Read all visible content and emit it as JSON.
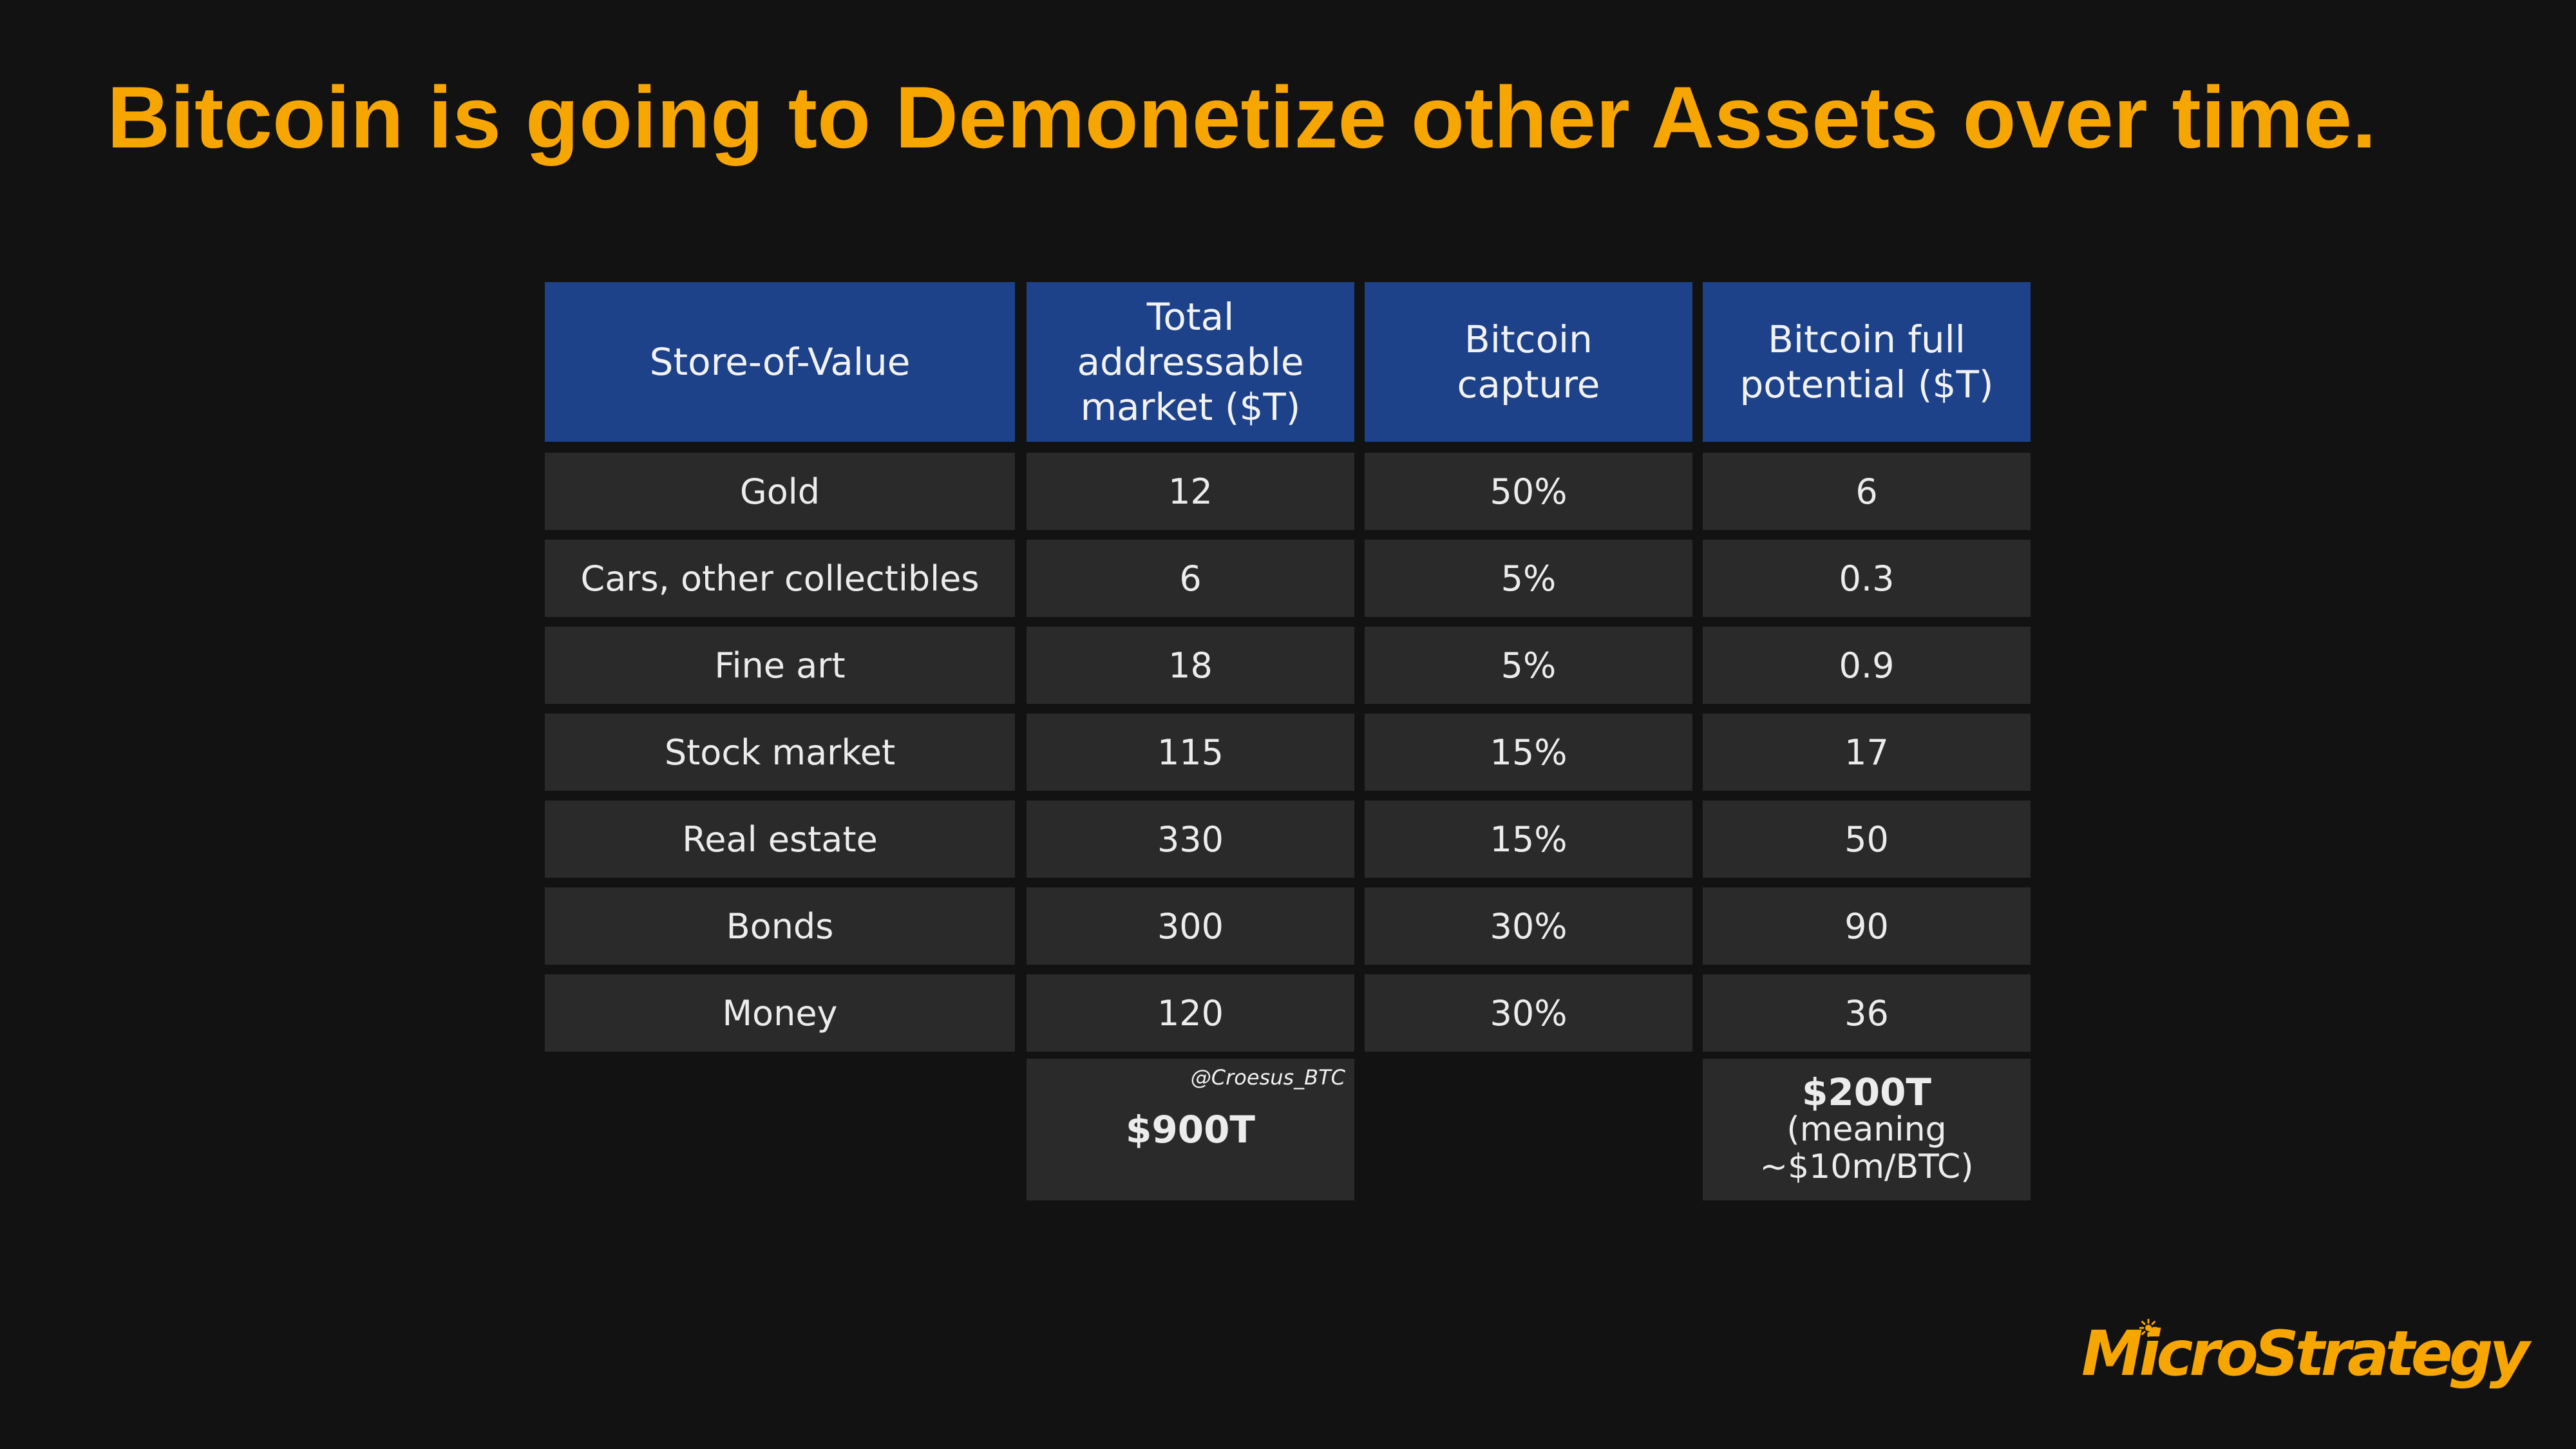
{
  "title": "Bitcoin is going to Demonetize other Assets over time.",
  "colors": {
    "title": "#f7a600",
    "header_bg": "#1d4289",
    "cell_bg": "#2a2a2a",
    "background": "#121212"
  },
  "table": {
    "headers": [
      [
        "Store-of-Value"
      ],
      [
        "Total",
        "addressable",
        "market ($T)"
      ],
      [
        "Bitcoin",
        "capture"
      ],
      [
        "Bitcoin full",
        "potential ($T)"
      ]
    ],
    "rows": [
      {
        "asset": "Gold",
        "tam": "12",
        "capture": "50%",
        "potential": "6"
      },
      {
        "asset": "Cars, other collectibles",
        "tam": "6",
        "capture": "5%",
        "potential": "0.3"
      },
      {
        "asset": "Fine art",
        "tam": "18",
        "capture": "5%",
        "potential": "0.9"
      },
      {
        "asset": "Stock market",
        "tam": "115",
        "capture": "15%",
        "potential": "17"
      },
      {
        "asset": "Real estate",
        "tam": "330",
        "capture": "15%",
        "potential": "50"
      },
      {
        "asset": "Bonds",
        "tam": "300",
        "capture": "30%",
        "potential": "90"
      },
      {
        "asset": "Money",
        "tam": "120",
        "capture": "30%",
        "potential": "36"
      }
    ],
    "totals": {
      "tam": "$900T",
      "handle": "@Croesus_BTC",
      "potential": "$200T",
      "potential_note_1": "(meaning",
      "potential_note_2": "~$10m/BTC)"
    }
  },
  "logo": {
    "text": "MicroStrategy",
    "icon": "sun-spark-icon"
  }
}
